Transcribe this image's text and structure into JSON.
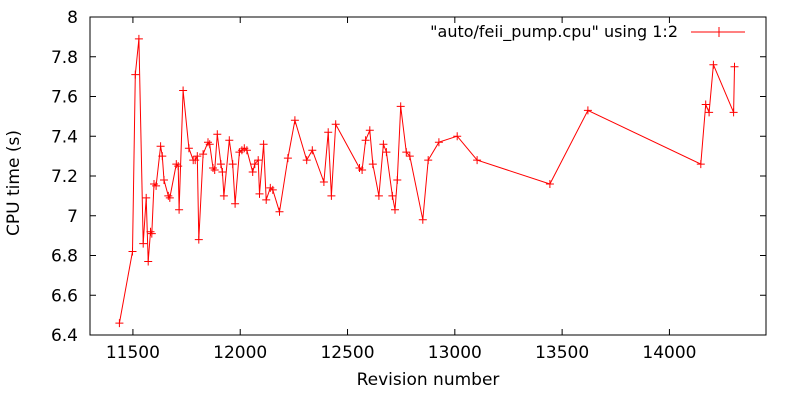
{
  "figure": {
    "background": "#ffffff",
    "frame_color": "#000000",
    "text_color": "#000000"
  },
  "chart_data": {
    "type": "line",
    "title": "",
    "legend": "\"auto/feii_pump.cpu\" using 1:2",
    "xlabel": "Revision number",
    "ylabel": "CPU time (s)",
    "xlim": [
      11300,
      14450
    ],
    "ylim": [
      6.4,
      8.0
    ],
    "xticks": [
      11500,
      12000,
      12500,
      13000,
      13500,
      14000
    ],
    "xtick_labels": [
      "11500",
      "12000",
      "12500",
      "13000",
      "13500",
      "14000"
    ],
    "yticks": [
      6.4,
      6.6,
      6.8,
      7.0,
      7.2,
      7.4,
      7.6,
      7.8,
      8.0
    ],
    "ytick_labels": [
      "6.4",
      "6.6",
      "6.8",
      "7",
      "7.2",
      "7.4",
      "7.6",
      "7.8",
      "8"
    ],
    "grid": false,
    "legend_position": "top-right-inside",
    "marker": "plus",
    "line_color": "#ff0000",
    "series": [
      {
        "name": "\"auto/feii_pump.cpu\" using 1:2",
        "points": [
          [
            11437,
            6.46
          ],
          [
            11498,
            6.82
          ],
          [
            11511,
            7.71
          ],
          [
            11528,
            7.89
          ],
          [
            11548,
            6.86
          ],
          [
            11562,
            7.09
          ],
          [
            11571,
            6.77
          ],
          [
            11582,
            6.92
          ],
          [
            11588,
            6.91
          ],
          [
            11598,
            7.16
          ],
          [
            11608,
            7.15
          ],
          [
            11629,
            7.35
          ],
          [
            11637,
            7.3
          ],
          [
            11645,
            7.18
          ],
          [
            11665,
            7.1
          ],
          [
            11672,
            7.09
          ],
          [
            11702,
            7.26
          ],
          [
            11711,
            7.25
          ],
          [
            11715,
            7.03
          ],
          [
            11734,
            7.63
          ],
          [
            11761,
            7.34
          ],
          [
            11781,
            7.28
          ],
          [
            11790,
            7.28
          ],
          [
            11800,
            7.3
          ],
          [
            11807,
            6.88
          ],
          [
            11827,
            7.31
          ],
          [
            11850,
            7.37
          ],
          [
            11858,
            7.36
          ],
          [
            11873,
            7.24
          ],
          [
            11881,
            7.23
          ],
          [
            11893,
            7.41
          ],
          [
            11910,
            7.26
          ],
          [
            11917,
            7.22
          ],
          [
            11924,
            7.1
          ],
          [
            11949,
            7.38
          ],
          [
            11965,
            7.26
          ],
          [
            11976,
            7.06
          ],
          [
            11996,
            7.32
          ],
          [
            12008,
            7.33
          ],
          [
            12019,
            7.34
          ],
          [
            12031,
            7.33
          ],
          [
            12058,
            7.22
          ],
          [
            12068,
            7.26
          ],
          [
            12084,
            7.28
          ],
          [
            12090,
            7.11
          ],
          [
            12109,
            7.36
          ],
          [
            12121,
            7.08
          ],
          [
            12140,
            7.14
          ],
          [
            12152,
            7.13
          ],
          [
            12183,
            7.02
          ],
          [
            12222,
            7.29
          ],
          [
            12255,
            7.48
          ],
          [
            12310,
            7.28
          ],
          [
            12336,
            7.33
          ],
          [
            12390,
            7.17
          ],
          [
            12410,
            7.42
          ],
          [
            12425,
            7.1
          ],
          [
            12445,
            7.46
          ],
          [
            12556,
            7.24
          ],
          [
            12568,
            7.23
          ],
          [
            12584,
            7.38
          ],
          [
            12604,
            7.43
          ],
          [
            12618,
            7.26
          ],
          [
            12646,
            7.1
          ],
          [
            12667,
            7.36
          ],
          [
            12681,
            7.32
          ],
          [
            12709,
            7.1
          ],
          [
            12721,
            7.03
          ],
          [
            12732,
            7.18
          ],
          [
            12748,
            7.55
          ],
          [
            12774,
            7.32
          ],
          [
            12790,
            7.3
          ],
          [
            12851,
            6.98
          ],
          [
            12876,
            7.28
          ],
          [
            12926,
            7.37
          ],
          [
            13011,
            7.4
          ],
          [
            13104,
            7.28
          ],
          [
            13443,
            7.16
          ],
          [
            13620,
            7.53
          ],
          [
            14146,
            7.26
          ],
          [
            14169,
            7.56
          ],
          [
            14185,
            7.52
          ],
          [
            14205,
            7.76
          ],
          [
            14299,
            7.52
          ],
          [
            14303,
            7.75
          ]
        ]
      }
    ]
  }
}
